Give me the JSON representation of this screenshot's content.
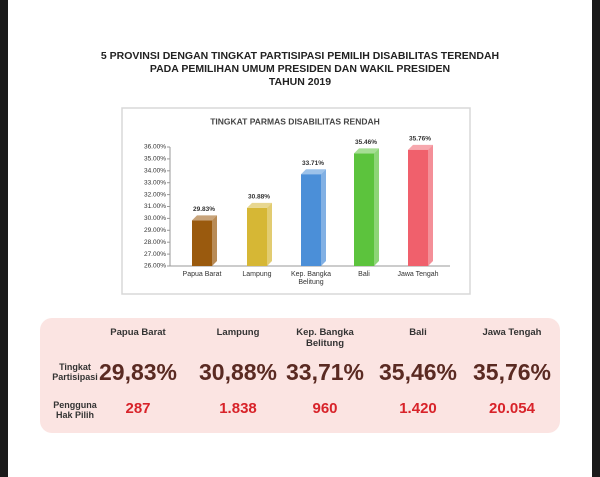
{
  "header": {
    "title": [
      "5 PROVINSI DENGAN TINGKAT PARTISIPASI PEMILIH DISABILITAS TERENDAH",
      "PADA PEMILIHAN UMUM PRESIDEN DAN WAKIL PRESIDEN",
      "TAHUN 2019"
    ]
  },
  "chart_data": {
    "type": "bar",
    "title": "TINGKAT PARMAS DISABILITAS RENDAH",
    "categories": [
      "Papua Barat",
      "Lampung",
      "Kep. Bangka Belitung",
      "Bali",
      "Jawa Tengah"
    ],
    "values": [
      29.83,
      30.88,
      33.71,
      35.46,
      35.76
    ],
    "value_labels": [
      "29.83%",
      "30.88%",
      "33.71%",
      "35.46%",
      "35.76%"
    ],
    "colors": [
      "#9a5a0e",
      "#d6b735",
      "#4b8fd8",
      "#5cc33d",
      "#f0606c"
    ],
    "ylim": [
      26,
      36
    ],
    "yticks": [
      {
        "value": 26,
        "label": "26.00%"
      },
      {
        "value": 27,
        "label": "27.00%"
      },
      {
        "value": 28,
        "label": "28.00%"
      },
      {
        "value": 29,
        "label": "29.00%"
      },
      {
        "value": 30,
        "label": "30.00%"
      },
      {
        "value": 31,
        "label": "31.00%"
      },
      {
        "value": 32,
        "label": "32.00%"
      },
      {
        "value": 33,
        "label": "33.00%"
      },
      {
        "value": 34,
        "label": "34.00%"
      },
      {
        "value": 35,
        "label": "35.00%"
      },
      {
        "value": 36,
        "label": "36.00%"
      }
    ],
    "grid": false
  },
  "table": {
    "columns": [
      "Papua Barat",
      "Lampung",
      "Kep. Bangka Belitung",
      "Bali",
      "Jawa Tengah"
    ],
    "rows": [
      {
        "label": "Tingkat Partisipasi",
        "cells": [
          "29,83%",
          "30,88%",
          "33,71%",
          "35,46%",
          "35,76%"
        ]
      },
      {
        "label": "Pengguna Hak Pilih",
        "cells": [
          "287",
          "1.838",
          "960",
          "1.420",
          "20.054"
        ]
      }
    ]
  }
}
